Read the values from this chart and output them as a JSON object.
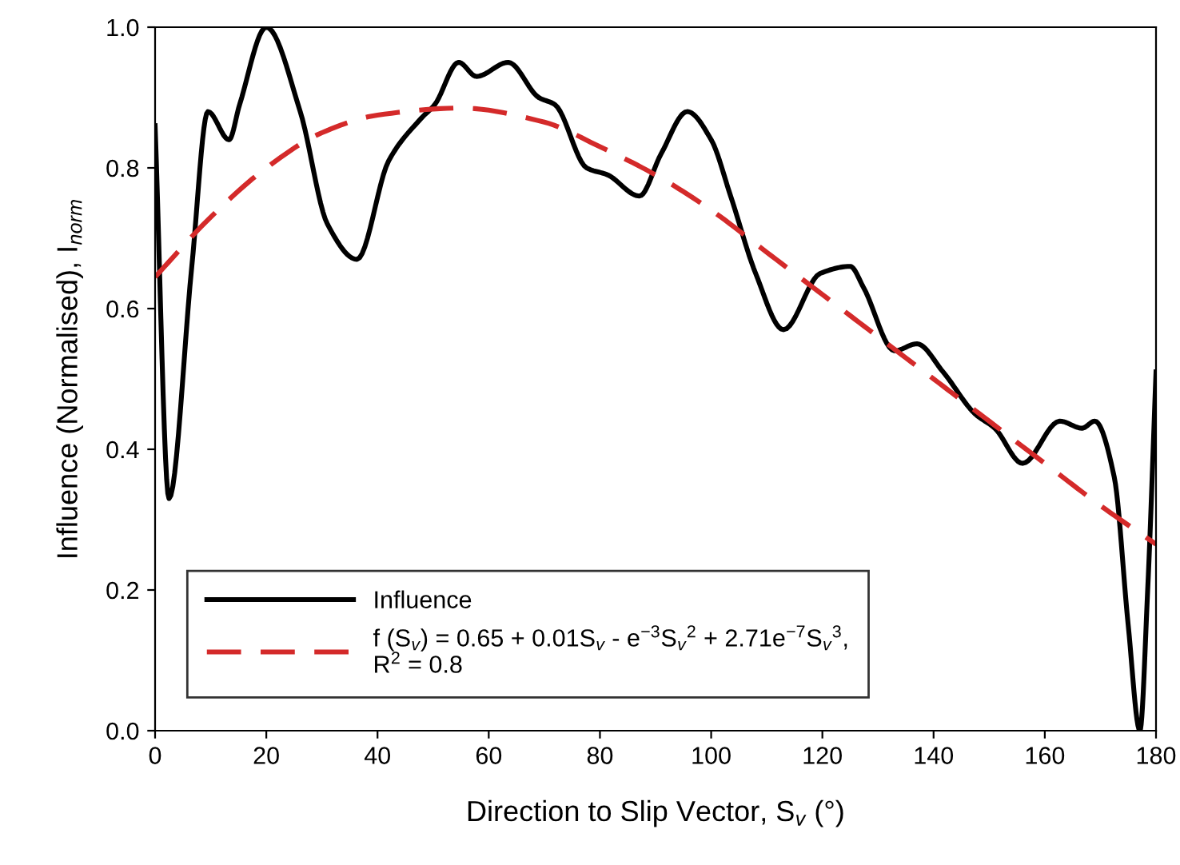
{
  "chart_data": {
    "type": "line",
    "xlabel": "Direction to Slip Vector, S$_{v}$ (°)",
    "ylabel": "Influence (Normalised), I$_{norm}$",
    "xlim": [
      0,
      180
    ],
    "ylim": [
      0,
      1
    ],
    "xticks": [
      0,
      20,
      40,
      60,
      80,
      100,
      120,
      140,
      160,
      180
    ],
    "yticks": [
      {
        "value": 0,
        "label": "0.0"
      },
      {
        "value": 0.2,
        "label": "0.2"
      },
      {
        "value": 0.4,
        "label": "0.4"
      },
      {
        "value": 0.6,
        "label": "0.6"
      },
      {
        "value": 0.8,
        "label": "0.8"
      },
      {
        "value": 1,
        "label": "1.0"
      }
    ],
    "grid": false,
    "legend": "bottom left",
    "marker": "none",
    "series": [
      {
        "name": "Influence",
        "color": "#000000",
        "line_style": "solid",
        "x": [
          0,
          2.5,
          6.6,
          9.5,
          13.3,
          15.2,
          20,
          26.1,
          31,
          36.3,
          42,
          47.8,
          50.3,
          54.6,
          57.8,
          63.5,
          69,
          71.9,
          77.6,
          81.4,
          87.1,
          91,
          95.7,
          100,
          103.5,
          108,
          113,
          119.6,
          125,
          127.4,
          133,
          137,
          141.7,
          147.5,
          151,
          156,
          162.7,
          166.7,
          169,
          172.5,
          175,
          177.1,
          178.5,
          180
        ],
        "values": [
          0.86,
          0.33,
          0.66,
          0.88,
          0.84,
          0.89,
          1.0,
          0.88,
          0.72,
          0.67,
          0.81,
          0.87,
          0.89,
          0.95,
          0.93,
          0.95,
          0.9,
          0.89,
          0.8,
          0.79,
          0.76,
          0.82,
          0.88,
          0.84,
          0.76,
          0.65,
          0.57,
          0.65,
          0.66,
          0.63,
          0.54,
          0.55,
          0.51,
          0.45,
          0.43,
          0.38,
          0.44,
          0.43,
          0.44,
          0.36,
          0.15,
          0.0,
          0.2,
          0.51
        ]
      },
      {
        "name": "f (S$_{v}$) = 0.65 + 0.01S$_{v}$ - e$^{−3}$S$_{v}$$^{2}$ + 2.71e$^{−7}$S$_{v}$$^{3}$,\nR$^{2}$ = 0.8",
        "color": "#d42a2a",
        "line_style": "dashed",
        "x": [
          0,
          10,
          20,
          30,
          40,
          55,
          70,
          80,
          90,
          100,
          110,
          120,
          130,
          140,
          150,
          160,
          170,
          180
        ],
        "values": [
          0.645,
          0.73,
          0.8,
          0.85,
          0.875,
          0.885,
          0.865,
          0.83,
          0.79,
          0.74,
          0.68,
          0.62,
          0.56,
          0.5,
          0.44,
          0.38,
          0.32,
          0.265
        ]
      }
    ]
  }
}
